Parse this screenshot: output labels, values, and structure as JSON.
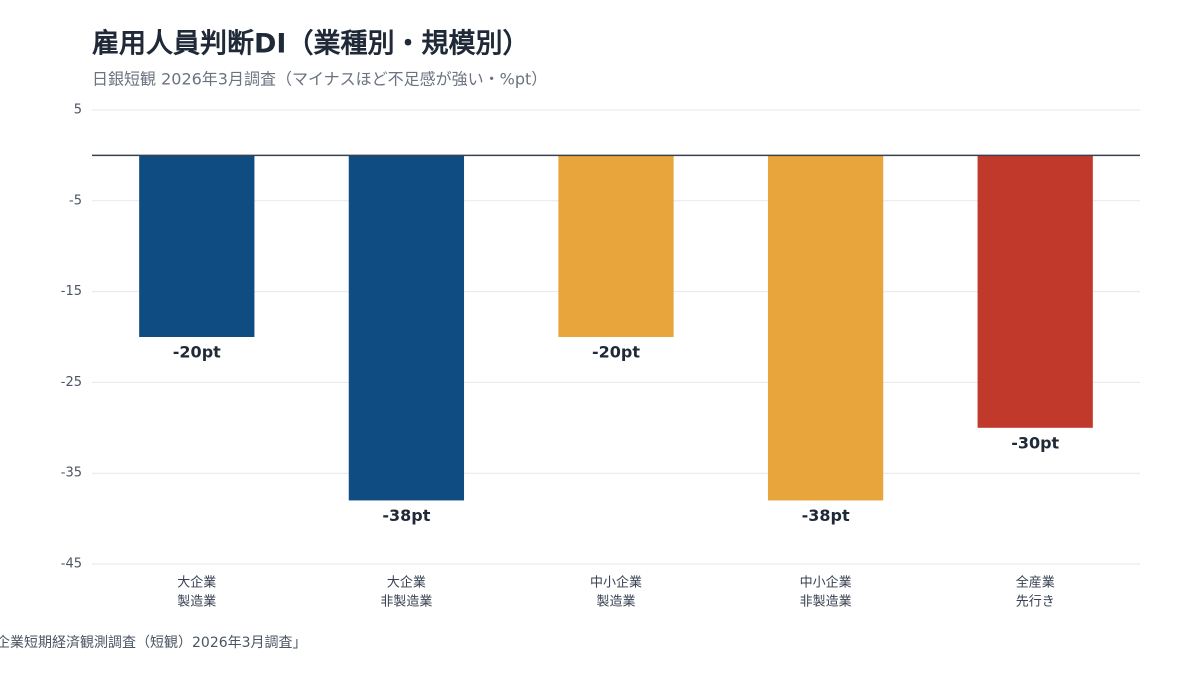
{
  "chart_data": {
    "type": "bar",
    "title": "雇用人員判断DI（業種別・規模別）",
    "subtitle": "日銀短観 2026年3月調査（マイナスほど不足感が強い・%pt）",
    "source": "企業短期経済観測調査（短観）2026年3月調査」",
    "categories": [
      [
        "大企業",
        "製造業"
      ],
      [
        "大企業",
        "非製造業"
      ],
      [
        "中小企業",
        "製造業"
      ],
      [
        "中小企業",
        "非製造業"
      ],
      [
        "全産業",
        "先行き"
      ]
    ],
    "values": [
      -20,
      -38,
      -20,
      -38,
      -30
    ],
    "value_labels": [
      "-20pt",
      "-38pt",
      "-20pt",
      "-38pt",
      "-30pt"
    ],
    "colors": [
      "#0f4c81",
      "#0f4c81",
      "#e8a53c",
      "#e8a53c",
      "#c0392b"
    ],
    "ylim": [
      -45,
      5
    ],
    "yticks": [
      5,
      -5,
      -15,
      -25,
      -35,
      -45
    ],
    "grid": true
  }
}
